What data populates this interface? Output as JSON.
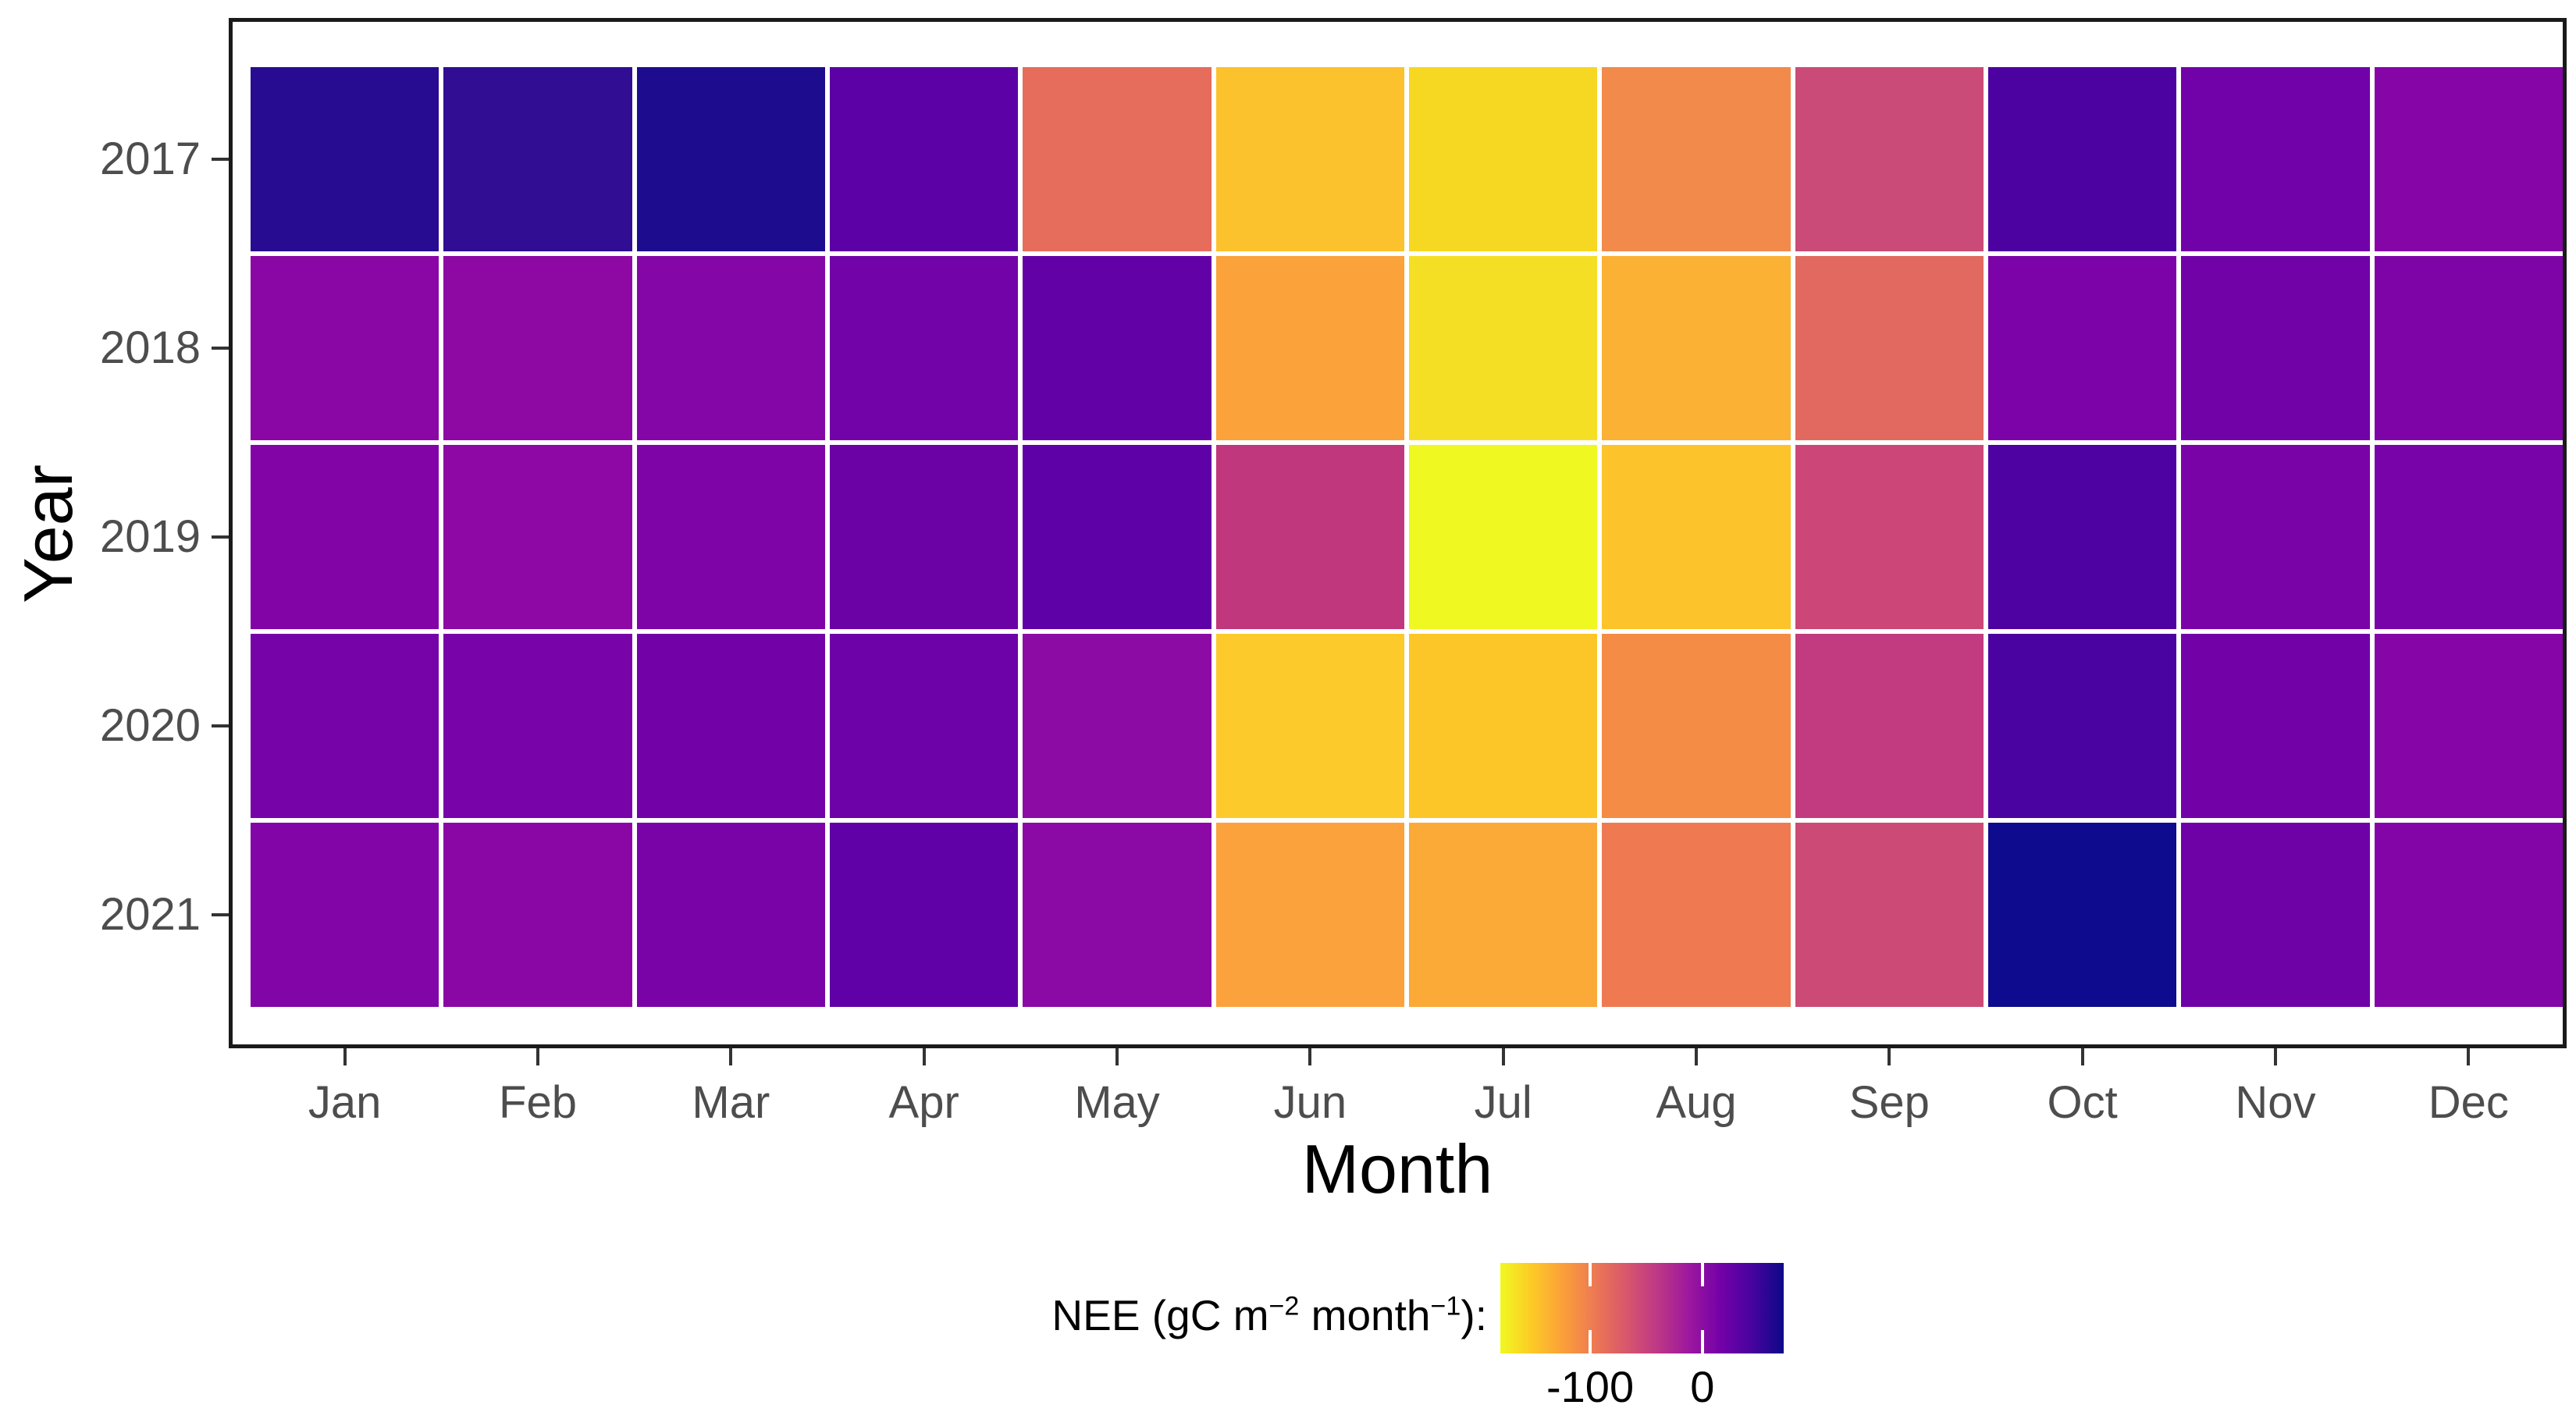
{
  "figure": {
    "background": "#ffffff",
    "panel_border_color": "#1a1a1a",
    "tick_color": "#333333",
    "axis_text_color": "#4d4d4d",
    "axis_title_color": "#000000"
  },
  "chart_data": {
    "type": "heatmap",
    "title": "",
    "xlabel": "Month",
    "ylabel": "Year",
    "x_categories": [
      "Jan",
      "Feb",
      "Mar",
      "Apr",
      "May",
      "Jun",
      "Jul",
      "Aug",
      "Sep",
      "Oct",
      "Nov",
      "Dec"
    ],
    "y_categories": [
      "2017",
      "2018",
      "2019",
      "2020",
      "2021"
    ],
    "grid": false,
    "values_unit": "gC m−2 month−1",
    "values_estimated_from_color": true,
    "series": [
      {
        "year": "2017",
        "values": [
          58,
          53,
          62,
          33,
          -69,
          -126,
          -139,
          -92,
          -42,
          43,
          23,
          13
        ],
        "colors": [
          "#270b90",
          "#300d92",
          "#1d0c8e",
          "#5c01a5",
          "#e66c5c",
          "#fcc22d",
          "#f6d823",
          "#f28a4b",
          "#ca4b78",
          "#4c02a1",
          "#7101a8",
          "#8505a7"
        ]
      },
      {
        "year": "2018",
        "values": [
          10,
          7,
          12,
          22,
          31,
          -103,
          -143,
          -112,
          -68,
          18,
          22,
          17
        ],
        "colors": [
          "#8a06a5",
          "#8e08a4",
          "#8506a7",
          "#7203a8",
          "#6101a6",
          "#fba23b",
          "#f5df24",
          "#fbb134",
          "#e2695f",
          "#7c03a8",
          "#7102a8",
          "#7f04a8"
        ]
      },
      {
        "year": "2019",
        "values": [
          16,
          7,
          17,
          27,
          32,
          -31,
          -163,
          -124,
          -38,
          43,
          20,
          21
        ],
        "colors": [
          "#8204a7",
          "#8d08a4",
          "#7f04a8",
          "#6a02a6",
          "#5e01a6",
          "#c0377e",
          "#eff821",
          "#fcc42a",
          "#cc4778",
          "#4d02a1",
          "#7a03a8",
          "#7803a8"
        ]
      },
      {
        "year": "2020",
        "values": [
          22,
          21,
          23,
          25,
          6,
          -128,
          -126,
          -92,
          -32,
          45,
          23,
          13
        ],
        "colors": [
          "#7603a8",
          "#7803a8",
          "#7202a8",
          "#6d02a8",
          "#8c0ba5",
          "#fcca2a",
          "#fcc628",
          "#f58c46",
          "#c23a80",
          "#4a03a0",
          "#7202a8",
          "#8505a7"
        ]
      },
      {
        "year": "2021",
        "values": [
          16,
          10,
          20,
          32,
          8,
          -103,
          -108,
          -78,
          -39,
          70,
          25,
          15
        ],
        "colors": [
          "#8105a7",
          "#8a07a5",
          "#7a03a8",
          "#5f01a6",
          "#8b09a5",
          "#fba23c",
          "#fbaa38",
          "#ef7a52",
          "#cc4b76",
          "#0f0b8e",
          "#6e02a7",
          "#8305a7"
        ]
      }
    ],
    "colorbar": {
      "title_segments": [
        {
          "text": "NEE (gC m"
        },
        {
          "text": "−2",
          "sup": true
        },
        {
          "text": " month"
        },
        {
          "text": "−1",
          "sup": true
        },
        {
          "text": "):"
        }
      ],
      "orientation": "horizontal",
      "domain": [
        -178,
        72
      ],
      "reversed": true,
      "gradient_stops": [
        "#f0f921",
        "#fdca26",
        "#fb9f3a",
        "#ed7953",
        "#d8576b",
        "#bd3786",
        "#9c179e",
        "#7301a8",
        "#47039f",
        "#0d0887"
      ],
      "ticks": [
        {
          "label": "-100",
          "position": 0.317
        },
        {
          "label": "0",
          "position": 0.713
        }
      ]
    }
  }
}
